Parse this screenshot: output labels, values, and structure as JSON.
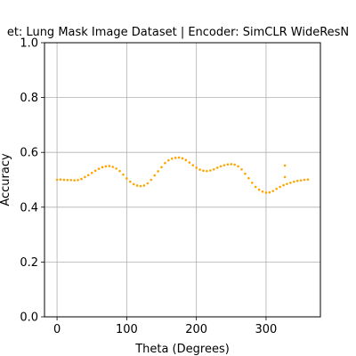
{
  "chart_data": {
    "type": "scatter",
    "title": "et: Lung Mask Image Dataset | Encoder: SimCLR WideResN",
    "xlabel": "Theta (Degrees)",
    "ylabel": "Accuracy",
    "xlim": [
      -18,
      378
    ],
    "ylim": [
      0,
      1
    ],
    "xticks": [
      0,
      100,
      200,
      300
    ],
    "yticks": [
      0.0,
      0.2,
      0.4,
      0.6,
      0.8,
      1.0
    ],
    "xtick_labels": [
      "0",
      "100",
      "200",
      "300"
    ],
    "ytick_labels": [
      "0.0",
      "0.2",
      "0.4",
      "0.6",
      "0.8",
      "1.0"
    ],
    "grid": true,
    "point_color": "#FFA500",
    "series": [
      {
        "x": [
          0,
          5,
          10,
          15,
          20,
          25,
          30,
          35,
          40,
          45,
          50,
          55,
          60,
          65,
          70,
          75,
          80,
          85,
          90,
          95,
          100,
          105,
          110,
          115,
          120,
          125,
          130,
          135,
          140,
          145,
          150,
          155,
          160,
          165,
          170,
          175,
          180,
          185,
          190,
          195,
          200,
          205,
          210,
          215,
          220,
          225,
          230,
          235,
          240,
          245,
          250,
          255,
          260,
          265,
          270,
          275,
          280,
          285,
          290,
          295,
          300,
          305,
          310,
          315,
          320,
          325,
          330,
          335,
          340,
          345,
          350,
          355,
          360,
          327,
          327
        ],
        "y": [
          0.5,
          0.501,
          0.5,
          0.499,
          0.499,
          0.498,
          0.499,
          0.503,
          0.51,
          0.517,
          0.525,
          0.533,
          0.54,
          0.546,
          0.549,
          0.55,
          0.547,
          0.541,
          0.532,
          0.519,
          0.505,
          0.493,
          0.484,
          0.479,
          0.477,
          0.479,
          0.487,
          0.5,
          0.516,
          0.531,
          0.546,
          0.561,
          0.571,
          0.577,
          0.58,
          0.581,
          0.578,
          0.572,
          0.563,
          0.553,
          0.544,
          0.537,
          0.533,
          0.532,
          0.534,
          0.538,
          0.544,
          0.549,
          0.553,
          0.556,
          0.557,
          0.555,
          0.549,
          0.538,
          0.522,
          0.506,
          0.489,
          0.474,
          0.464,
          0.457,
          0.453,
          0.454,
          0.459,
          0.467,
          0.474,
          0.48,
          0.485,
          0.489,
          0.493,
          0.496,
          0.498,
          0.5,
          0.501,
          0.552,
          0.51
        ]
      }
    ]
  }
}
